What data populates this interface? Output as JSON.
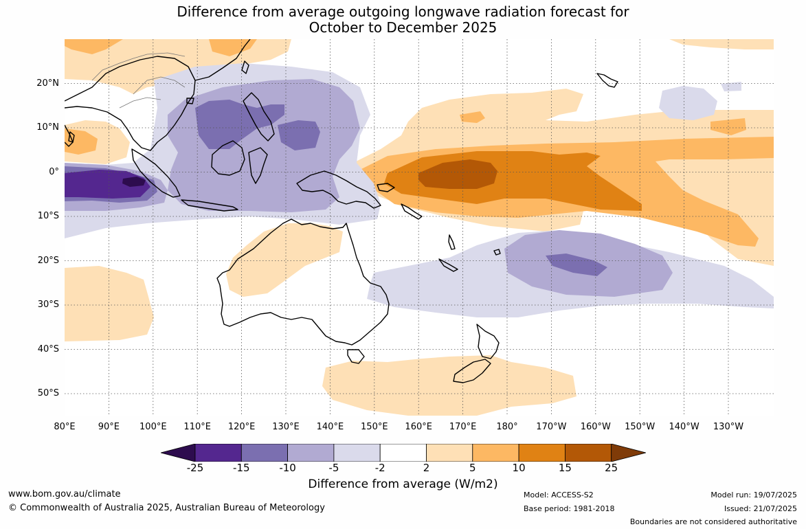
{
  "title_line1": "Difference from average outgoing longwave radiation forecast for",
  "title_line2": "October to December 2025",
  "lat_labels": [
    {
      "lat": 20,
      "text": "20°N"
    },
    {
      "lat": 10,
      "text": "10°N"
    },
    {
      "lat": 0,
      "text": "0°"
    },
    {
      "lat": -10,
      "text": "10°S"
    },
    {
      "lat": -20,
      "text": "20°S"
    },
    {
      "lat": -30,
      "text": "30°S"
    },
    {
      "lat": -40,
      "text": "40°S"
    },
    {
      "lat": -50,
      "text": "50°S"
    }
  ],
  "lon_labels": [
    {
      "lon": 80,
      "text": "80°E"
    },
    {
      "lon": 90,
      "text": "90°E"
    },
    {
      "lon": 100,
      "text": "100°E"
    },
    {
      "lon": 110,
      "text": "110°E"
    },
    {
      "lon": 120,
      "text": "120°E"
    },
    {
      "lon": 130,
      "text": "130°E"
    },
    {
      "lon": 140,
      "text": "140°E"
    },
    {
      "lon": 150,
      "text": "150°E"
    },
    {
      "lon": 160,
      "text": "160°E"
    },
    {
      "lon": 170,
      "text": "170°E"
    },
    {
      "lon": 180,
      "text": "180°"
    },
    {
      "lon": 190,
      "text": "170°W"
    },
    {
      "lon": 200,
      "text": "160°W"
    },
    {
      "lon": 210,
      "text": "150°W"
    },
    {
      "lon": 220,
      "text": "140°W"
    },
    {
      "lon": 230,
      "text": "130°W"
    }
  ],
  "legend": {
    "title": "Difference from average (W/m2)",
    "ticks": [
      "-25",
      "-15",
      "-10",
      "-5",
      "-2",
      "2",
      "5",
      "10",
      "15",
      "25"
    ],
    "colors": [
      "#2d0c4e",
      "#54278f",
      "#7b6fb0",
      "#b1aad2",
      "#dadaeb",
      "#ffffff",
      "#fee0b6",
      "#fdb863",
      "#e08214",
      "#b35806",
      "#7f3b08"
    ]
  },
  "footer": {
    "website": "www.bom.gov.au/climate",
    "copyright": "© Commonwealth of Australia 2025, Australian Bureau of Meteorology",
    "model": "Model: ACCESS-S2",
    "base_period": "Base period: 1981-2018",
    "model_run": "Model run: 19/07/2025",
    "issued": "Issued: 21/07/2025",
    "disclaimer": "Boundaries are not considered authoritative"
  }
}
